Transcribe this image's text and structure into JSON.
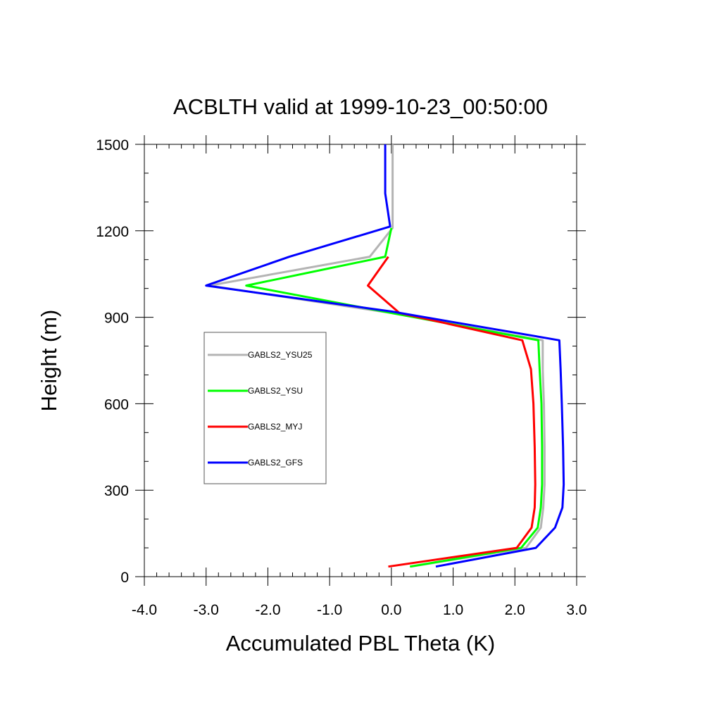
{
  "chart_data": {
    "type": "line",
    "title": "ACBLTH valid at 1999-10-23_00:50:00",
    "xlabel": "Accumulated PBL Theta (K)",
    "ylabel": "Height (m)",
    "xlim": [
      -4.0,
      3.0
    ],
    "ylim": [
      0,
      1500
    ],
    "xticks": [
      {
        "value": -4.0,
        "label": "-4.0"
      },
      {
        "value": -3.0,
        "label": "-3.0"
      },
      {
        "value": -2.0,
        "label": "-2.0"
      },
      {
        "value": -1.0,
        "label": "-1.0"
      },
      {
        "value": 0.0,
        "label": "0.0"
      },
      {
        "value": 1.0,
        "label": "1.0"
      },
      {
        "value": 2.0,
        "label": "2.0"
      },
      {
        "value": 3.0,
        "label": "3.0"
      }
    ],
    "yticks": [
      {
        "value": 0,
        "label": "0"
      },
      {
        "value": 300,
        "label": "300"
      },
      {
        "value": 600,
        "label": "600"
      },
      {
        "value": 900,
        "label": "900"
      },
      {
        "value": 1200,
        "label": "1200"
      },
      {
        "value": 1500,
        "label": "1500"
      }
    ],
    "grid": false,
    "legend_position": "left-middle",
    "series": [
      {
        "name": "GABLS2_YSU25",
        "color": "#b4b4b4",
        "points": [
          [
            0.32,
            35
          ],
          [
            2.18,
            100
          ],
          [
            2.42,
            170
          ],
          [
            2.46,
            240
          ],
          [
            2.48,
            320
          ],
          [
            2.48,
            450
          ],
          [
            2.47,
            600
          ],
          [
            2.45,
            720
          ],
          [
            2.45,
            820
          ],
          [
            0.0,
            915
          ],
          [
            -2.95,
            1010
          ],
          [
            -0.35,
            1110
          ],
          [
            0.02,
            1210
          ],
          [
            0.02,
            1310
          ],
          [
            0.02,
            1500
          ]
        ]
      },
      {
        "name": "GABLS2_YSU",
        "color": "#00ff00",
        "points": [
          [
            0.3,
            35
          ],
          [
            2.1,
            100
          ],
          [
            2.37,
            170
          ],
          [
            2.42,
            240
          ],
          [
            2.44,
            320
          ],
          [
            2.44,
            450
          ],
          [
            2.43,
            600
          ],
          [
            2.4,
            720
          ],
          [
            2.38,
            820
          ],
          [
            0.0,
            915
          ],
          [
            -2.35,
            1010
          ],
          [
            -0.1,
            1110
          ],
          [
            0.0,
            1210
          ]
        ]
      },
      {
        "name": "GABLS2_MYJ",
        "color": "#ff0000",
        "points": [
          [
            -0.05,
            35
          ],
          [
            2.03,
            100
          ],
          [
            2.27,
            170
          ],
          [
            2.32,
            240
          ],
          [
            2.33,
            320
          ],
          [
            2.32,
            450
          ],
          [
            2.3,
            600
          ],
          [
            2.26,
            720
          ],
          [
            2.12,
            820
          ],
          [
            0.13,
            915
          ],
          [
            -0.38,
            1010
          ],
          [
            -0.05,
            1110
          ]
        ]
      },
      {
        "name": "GABLS2_GFS",
        "color": "#0000ff",
        "points": [
          [
            0.72,
            35
          ],
          [
            2.34,
            100
          ],
          [
            2.65,
            170
          ],
          [
            2.77,
            240
          ],
          [
            2.79,
            320
          ],
          [
            2.78,
            450
          ],
          [
            2.76,
            600
          ],
          [
            2.74,
            720
          ],
          [
            2.72,
            820
          ],
          [
            0.0,
            920
          ],
          [
            -3.0,
            1010
          ],
          [
            -1.65,
            1110
          ],
          [
            -0.02,
            1215
          ],
          [
            -0.1,
            1330
          ],
          [
            -0.1,
            1500
          ]
        ]
      }
    ]
  }
}
